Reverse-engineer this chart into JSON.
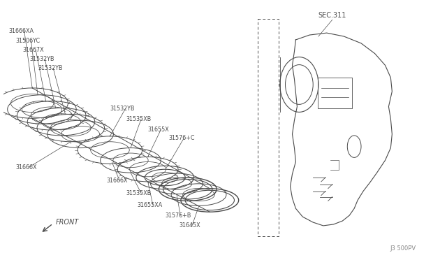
{
  "bg_color": "#ffffff",
  "line_color": "#4a4a4a",
  "text_color": "#4a4a4a",
  "fig_width": 6.4,
  "fig_height": 3.72,
  "watermark": "J3 500PV",
  "sec_label": "SEC.311",
  "front_label": "FRONT"
}
